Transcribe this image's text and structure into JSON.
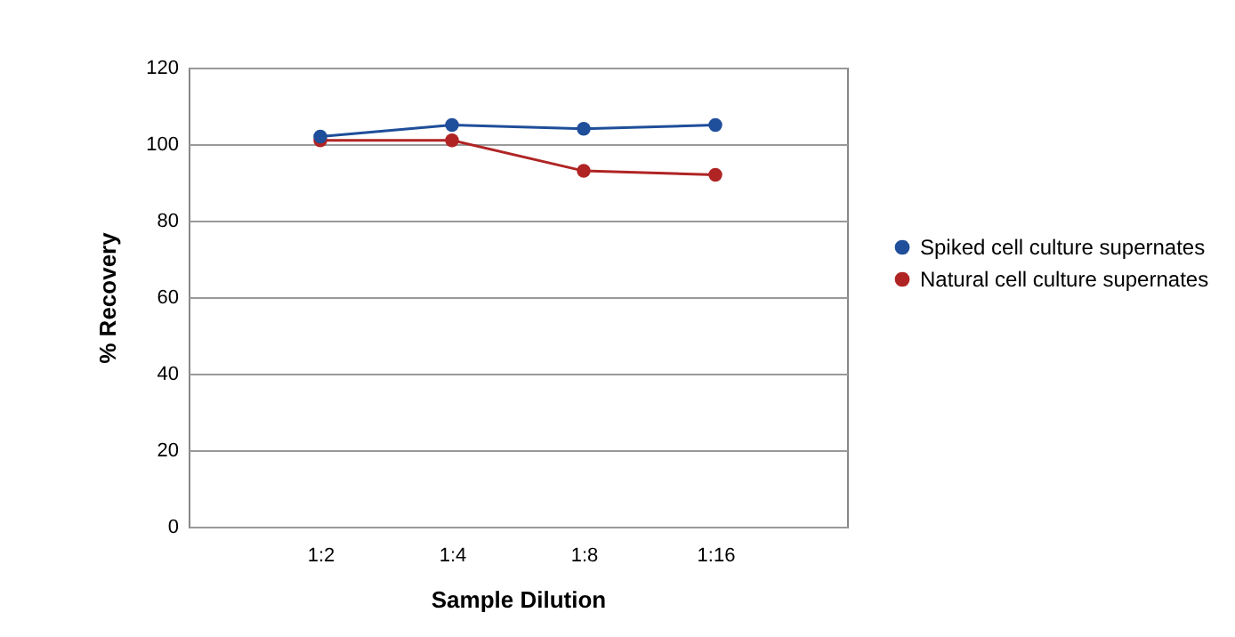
{
  "chart_data": {
    "type": "line",
    "xlabel": "Sample Dilution",
    "ylabel": "% Recovery",
    "categories": [
      "1:2",
      "1:4",
      "1:8",
      "1:16"
    ],
    "series": [
      {
        "name": "Spiked cell culture supernates",
        "color": "#1f4e9a",
        "values": [
          102,
          105,
          104,
          105
        ]
      },
      {
        "name": "Natural cell culture supernates",
        "color": "#b02424",
        "values": [
          101,
          101,
          93,
          92
        ]
      }
    ],
    "ylim": [
      0,
      120
    ],
    "yticks": [
      0,
      20,
      40,
      60,
      80,
      100,
      120
    ],
    "grid": "y",
    "legend": "right",
    "marker": "circle",
    "line_style": "solid"
  }
}
